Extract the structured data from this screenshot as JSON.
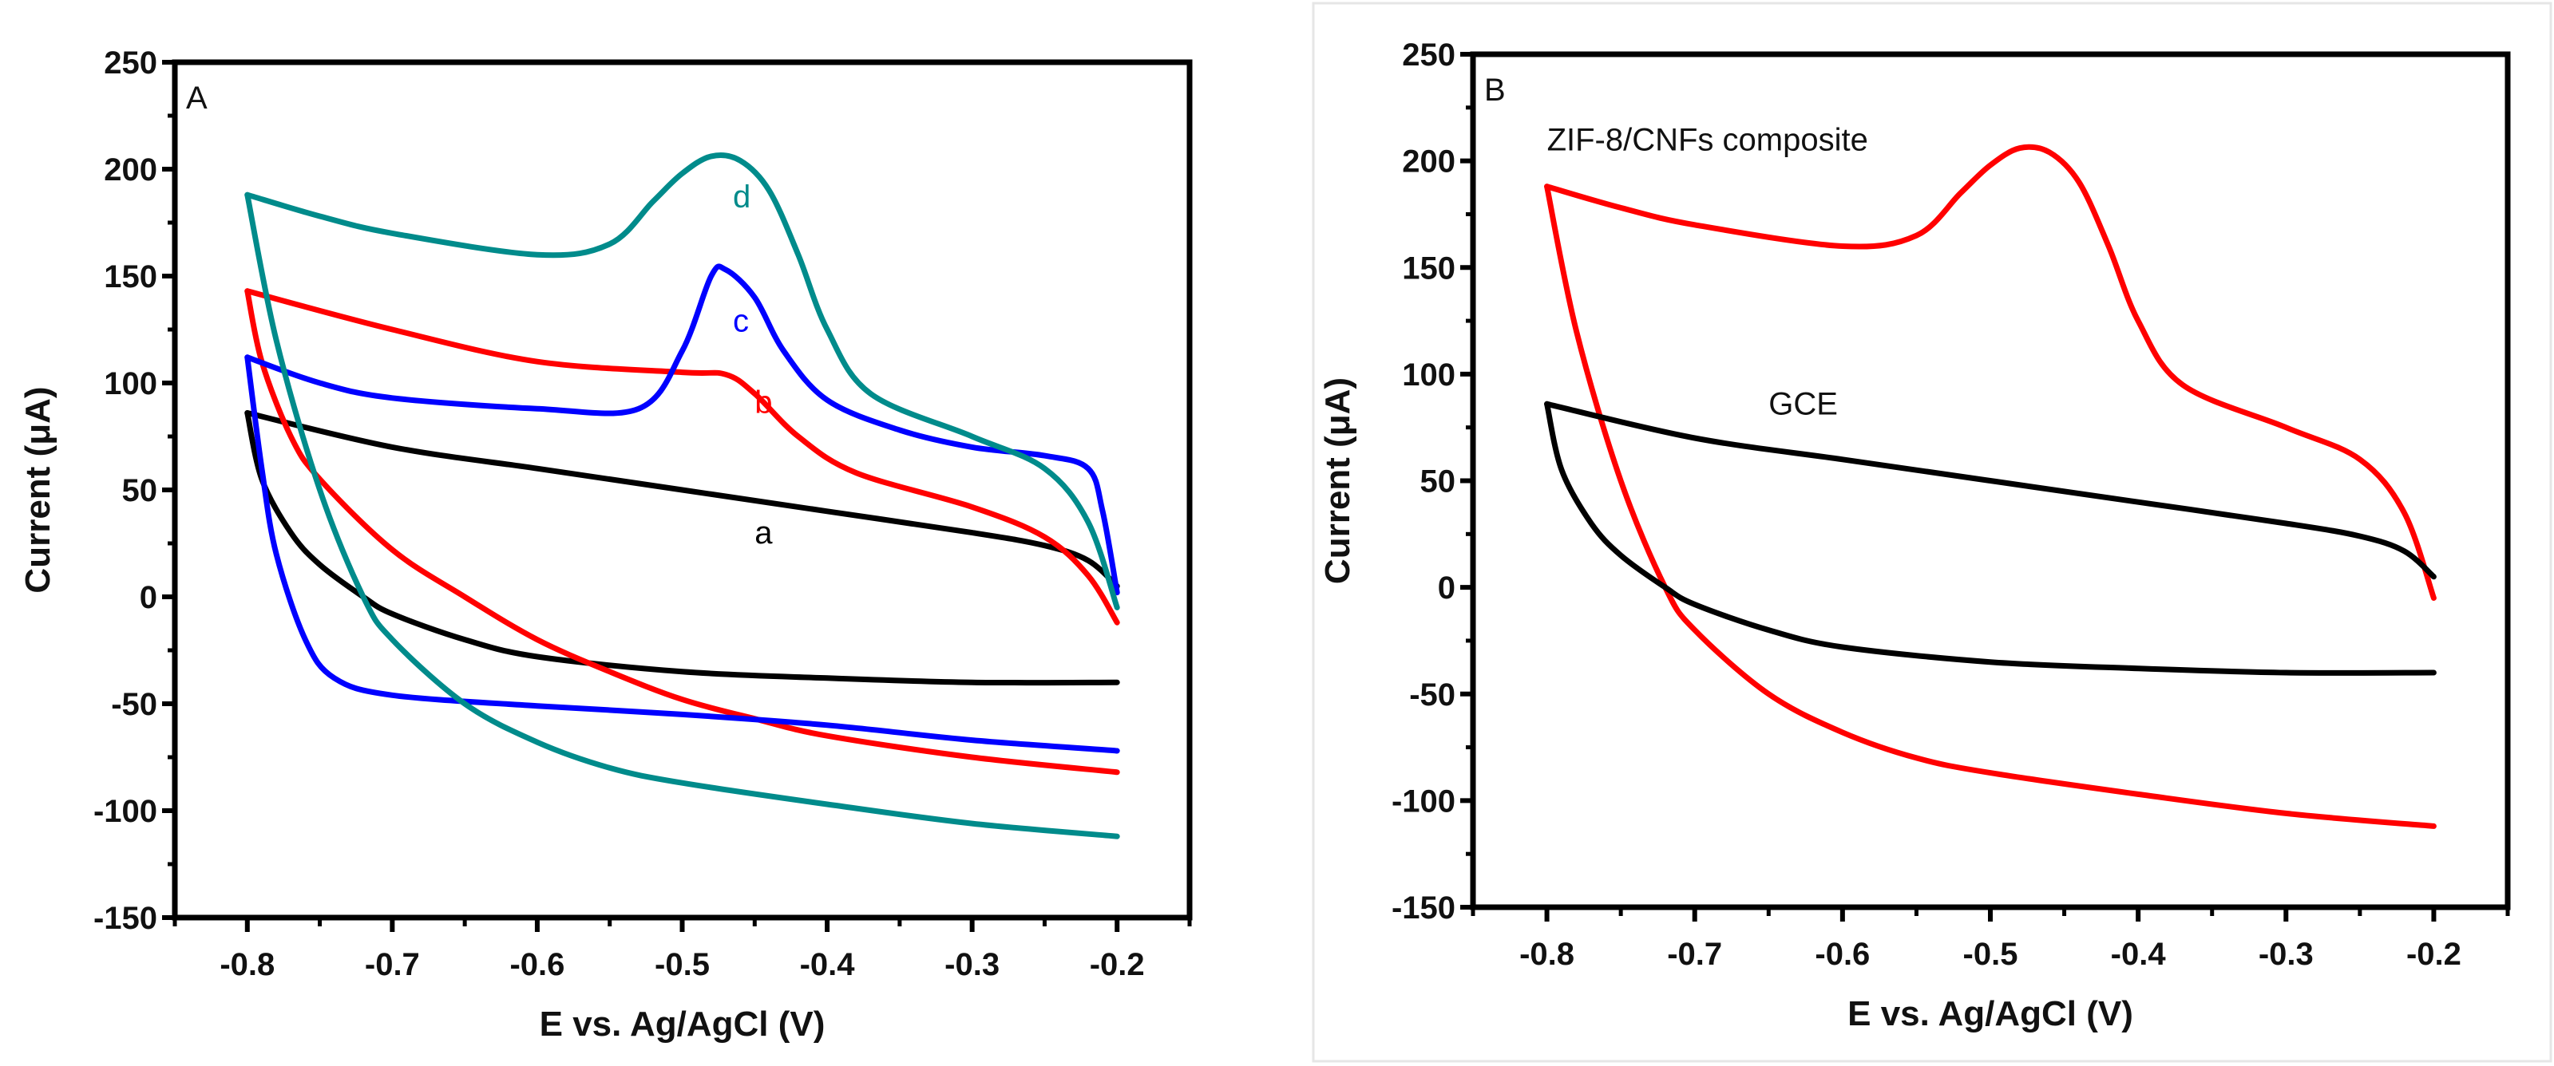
{
  "chart_data": [
    {
      "type": "line",
      "panel_label": "A",
      "xlabel": "E vs. Ag/AgCl (V)",
      "ylabel": "Current (μA)",
      "xlim": [
        -0.85,
        -0.15
      ],
      "ylim": [
        -150,
        250
      ],
      "xticks": [
        -0.8,
        -0.7,
        -0.6,
        -0.5,
        -0.4,
        -0.3,
        -0.2
      ],
      "xtick_labels": [
        "-0.8",
        "-0.7",
        "-0.6",
        "-0.5",
        "-0.4",
        "-0.3",
        "-0.2"
      ],
      "yticks": [
        -150,
        -100,
        -50,
        0,
        50,
        100,
        150,
        200,
        250
      ],
      "ytick_labels": [
        "-150",
        "-100",
        "-50",
        "0",
        "50",
        "100",
        "150",
        "200",
        "250"
      ],
      "grid": false,
      "series": [
        {
          "name": "a",
          "color": "#000000",
          "label_at": [
            -0.45,
            25
          ],
          "forward": [
            [
              -0.8,
              86
            ],
            [
              -0.7,
              70
            ],
            [
              -0.6,
              60
            ],
            [
              -0.5,
              50
            ],
            [
              -0.4,
              40
            ],
            [
              -0.3,
              30
            ],
            [
              -0.25,
              24
            ],
            [
              -0.22,
              17
            ],
            [
              -0.2,
              5
            ]
          ],
          "reverse": [
            [
              -0.8,
              86
            ],
            [
              -0.79,
              55
            ],
            [
              -0.77,
              30
            ],
            [
              -0.75,
              15
            ],
            [
              -0.72,
              0
            ],
            [
              -0.7,
              -8
            ],
            [
              -0.65,
              -20
            ],
            [
              -0.6,
              -28
            ],
            [
              -0.5,
              -35
            ],
            [
              -0.4,
              -38
            ],
            [
              -0.3,
              -40
            ],
            [
              -0.2,
              -40
            ]
          ]
        },
        {
          "name": "b",
          "color": "#ff0000",
          "label_at": [
            -0.45,
            86
          ],
          "forward": [
            [
              -0.8,
              143
            ],
            [
              -0.7,
              125
            ],
            [
              -0.6,
              110
            ],
            [
              -0.5,
              105
            ],
            [
              -0.47,
              104
            ],
            [
              -0.45,
              95
            ],
            [
              -0.42,
              75
            ],
            [
              -0.38,
              58
            ],
            [
              -0.3,
              42
            ],
            [
              -0.25,
              28
            ],
            [
              -0.22,
              10
            ],
            [
              -0.2,
              -12
            ]
          ],
          "reverse": [
            [
              -0.8,
              143
            ],
            [
              -0.79,
              110
            ],
            [
              -0.77,
              75
            ],
            [
              -0.75,
              55
            ],
            [
              -0.7,
              22
            ],
            [
              -0.65,
              0
            ],
            [
              -0.6,
              -20
            ],
            [
              -0.55,
              -35
            ],
            [
              -0.5,
              -48
            ],
            [
              -0.45,
              -57
            ],
            [
              -0.4,
              -65
            ],
            [
              -0.3,
              -75
            ],
            [
              -0.2,
              -82
            ]
          ]
        },
        {
          "name": "c",
          "color": "#0000ff",
          "label_at": [
            -0.465,
            124
          ],
          "forward": [
            [
              -0.8,
              112
            ],
            [
              -0.75,
              100
            ],
            [
              -0.7,
              93
            ],
            [
              -0.6,
              88
            ],
            [
              -0.53,
              88
            ],
            [
              -0.5,
              115
            ],
            [
              -0.48,
              150
            ],
            [
              -0.47,
              153
            ],
            [
              -0.45,
              140
            ],
            [
              -0.43,
              115
            ],
            [
              -0.4,
              92
            ],
            [
              -0.35,
              78
            ],
            [
              -0.3,
              70
            ],
            [
              -0.25,
              66
            ],
            [
              -0.22,
              60
            ],
            [
              -0.21,
              40
            ],
            [
              -0.2,
              2
            ]
          ],
          "reverse": [
            [
              -0.8,
              112
            ],
            [
              -0.79,
              60
            ],
            [
              -0.78,
              20
            ],
            [
              -0.76,
              -20
            ],
            [
              -0.74,
              -38
            ],
            [
              -0.7,
              -46
            ],
            [
              -0.6,
              -51
            ],
            [
              -0.5,
              -55
            ],
            [
              -0.4,
              -60
            ],
            [
              -0.3,
              -67
            ],
            [
              -0.2,
              -72
            ]
          ]
        },
        {
          "name": "d",
          "color": "#008b8b",
          "label_at": [
            -0.465,
            182
          ],
          "forward": [
            [
              -0.8,
              188
            ],
            [
              -0.75,
              178
            ],
            [
              -0.7,
              170
            ],
            [
              -0.6,
              160
            ],
            [
              -0.55,
              165
            ],
            [
              -0.52,
              185
            ],
            [
              -0.5,
              198
            ],
            [
              -0.48,
              206
            ],
            [
              -0.46,
              204
            ],
            [
              -0.44,
              190
            ],
            [
              -0.42,
              160
            ],
            [
              -0.4,
              125
            ],
            [
              -0.37,
              95
            ],
            [
              -0.3,
              75
            ],
            [
              -0.25,
              60
            ],
            [
              -0.22,
              35
            ],
            [
              -0.2,
              -5
            ]
          ],
          "reverse": [
            [
              -0.8,
              188
            ],
            [
              -0.78,
              120
            ],
            [
              -0.75,
              50
            ],
            [
              -0.72,
              0
            ],
            [
              -0.7,
              -20
            ],
            [
              -0.65,
              -50
            ],
            [
              -0.6,
              -68
            ],
            [
              -0.55,
              -80
            ],
            [
              -0.5,
              -87
            ],
            [
              -0.4,
              -97
            ],
            [
              -0.3,
              -106
            ],
            [
              -0.2,
              -112
            ]
          ]
        }
      ]
    },
    {
      "type": "line",
      "panel_label": "B",
      "xlabel": "E vs. Ag/AgCl (V)",
      "ylabel": "Current (μA)",
      "xlim": [
        -0.85,
        -0.15
      ],
      "ylim": [
        -150,
        250
      ],
      "xticks": [
        -0.8,
        -0.7,
        -0.6,
        -0.5,
        -0.4,
        -0.3,
        -0.2
      ],
      "xtick_labels": [
        "-0.8",
        "-0.7",
        "-0.6",
        "-0.5",
        "-0.4",
        "-0.3",
        "-0.2"
      ],
      "yticks": [
        -150,
        -100,
        -50,
        0,
        50,
        100,
        150,
        200,
        250
      ],
      "ytick_labels": [
        "-150",
        "-100",
        "-50",
        "0",
        "50",
        "100",
        "150",
        "200",
        "250"
      ],
      "grid": false,
      "series": [
        {
          "name": "ZIF-8/CNFs composite",
          "color": "#ff0000",
          "label_at": [
            -0.8,
            205
          ],
          "forward": [
            [
              -0.8,
              188
            ],
            [
              -0.75,
              178
            ],
            [
              -0.7,
              170
            ],
            [
              -0.6,
              160
            ],
            [
              -0.55,
              165
            ],
            [
              -0.52,
              185
            ],
            [
              -0.5,
              198
            ],
            [
              -0.48,
              206
            ],
            [
              -0.46,
              204
            ],
            [
              -0.44,
              190
            ],
            [
              -0.42,
              160
            ],
            [
              -0.4,
              125
            ],
            [
              -0.37,
              95
            ],
            [
              -0.3,
              75
            ],
            [
              -0.25,
              60
            ],
            [
              -0.22,
              35
            ],
            [
              -0.2,
              -5
            ]
          ],
          "reverse": [
            [
              -0.8,
              188
            ],
            [
              -0.78,
              120
            ],
            [
              -0.75,
              50
            ],
            [
              -0.72,
              0
            ],
            [
              -0.7,
              -20
            ],
            [
              -0.65,
              -50
            ],
            [
              -0.6,
              -68
            ],
            [
              -0.55,
              -80
            ],
            [
              -0.5,
              -87
            ],
            [
              -0.4,
              -97
            ],
            [
              -0.3,
              -106
            ],
            [
              -0.2,
              -112
            ]
          ]
        },
        {
          "name": "GCE",
          "color": "#000000",
          "label_at": [
            -0.65,
            81
          ],
          "forward": [
            [
              -0.8,
              86
            ],
            [
              -0.7,
              70
            ],
            [
              -0.6,
              60
            ],
            [
              -0.5,
              50
            ],
            [
              -0.4,
              40
            ],
            [
              -0.3,
              30
            ],
            [
              -0.25,
              24
            ],
            [
              -0.22,
              17
            ],
            [
              -0.2,
              5
            ]
          ],
          "reverse": [
            [
              -0.8,
              86
            ],
            [
              -0.79,
              55
            ],
            [
              -0.77,
              30
            ],
            [
              -0.75,
              15
            ],
            [
              -0.72,
              0
            ],
            [
              -0.7,
              -8
            ],
            [
              -0.65,
              -20
            ],
            [
              -0.6,
              -28
            ],
            [
              -0.5,
              -35
            ],
            [
              -0.4,
              -38
            ],
            [
              -0.3,
              -40
            ],
            [
              -0.2,
              -40
            ]
          ]
        }
      ]
    }
  ]
}
